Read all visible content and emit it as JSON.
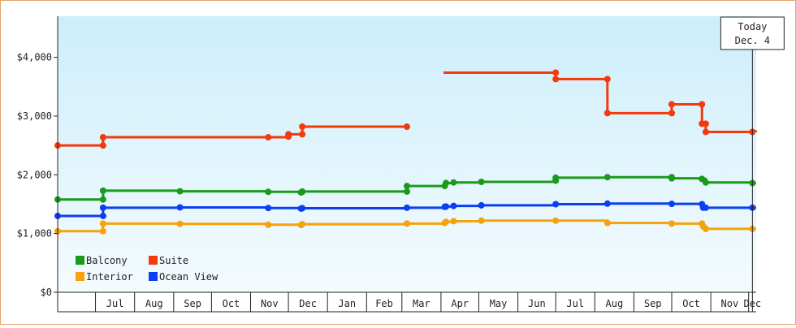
{
  "chart_data": {
    "type": "line",
    "step": true,
    "y_ticks": [
      "$0",
      "$1,000",
      "$2,000",
      "$3,000",
      "$4,000"
    ],
    "ylim": [
      0,
      4700
    ],
    "x_range": [
      "2016-06-01",
      "2017-12-07"
    ],
    "x_tick_labels": [
      {
        "label": "Jul",
        "date": "2016-07-01"
      },
      {
        "label": "Aug",
        "date": "2016-08-01"
      },
      {
        "label": "Sep",
        "date": "2016-09-01"
      },
      {
        "label": "Oct",
        "date": "2016-10-01"
      },
      {
        "label": "Nov",
        "date": "2016-11-01"
      },
      {
        "label": "Dec",
        "date": "2016-12-01"
      },
      {
        "label": "Jan",
        "date": "2017-01-01"
      },
      {
        "label": "Feb",
        "date": "2017-02-01"
      },
      {
        "label": "Mar",
        "date": "2017-03-01"
      },
      {
        "label": "Apr",
        "date": "2017-04-01"
      },
      {
        "label": "May",
        "date": "2017-05-01"
      },
      {
        "label": "Jun",
        "date": "2017-06-01"
      },
      {
        "label": "Jul",
        "date": "2017-07-01"
      },
      {
        "label": "Aug",
        "date": "2017-08-01"
      },
      {
        "label": "Sep",
        "date": "2017-09-01"
      },
      {
        "label": "Oct",
        "date": "2017-10-01"
      },
      {
        "label": "Nov",
        "date": "2017-11-01"
      },
      {
        "label": "Dec",
        "date": "2017-12-01"
      }
    ],
    "today": {
      "title": "Today",
      "label": "Dec. 4",
      "date": "2017-12-04"
    },
    "legend_position": "bottom-left",
    "grid": false,
    "series": [
      {
        "name": "Balcony",
        "color": "#1a9a1a",
        "segments": [
          [
            [
              "2016-06-01",
              1580
            ],
            [
              "2016-07-07",
              1580
            ],
            [
              "2016-07-07",
              1730
            ],
            [
              "2016-09-06",
              1720
            ],
            [
              "2016-11-15",
              1710
            ],
            [
              "2016-12-11",
              1700
            ],
            [
              "2016-12-12",
              1710
            ],
            [
              "2016-12-12",
              1715
            ],
            [
              "2017-03-05",
              1715
            ],
            [
              "2017-03-05",
              1810
            ],
            [
              "2017-04-04",
              1810
            ],
            [
              "2017-04-05",
              1860
            ],
            [
              "2017-04-11",
              1870
            ],
            [
              "2017-05-03",
              1880
            ],
            [
              "2017-07-01",
              1900
            ],
            [
              "2017-07-01",
              1950
            ],
            [
              "2017-08-11",
              1960
            ],
            [
              "2017-10-01",
              1960
            ],
            [
              "2017-10-01",
              1940
            ],
            [
              "2017-10-25",
              1930
            ],
            [
              "2017-10-28",
              1870
            ],
            [
              "2017-12-04",
              1860
            ]
          ]
        ],
        "forecast": [
          [
            "2017-12-04",
            1860
          ],
          [
            "2017-12-07",
            1860
          ]
        ]
      },
      {
        "name": "Suite",
        "color": "#f23a0c",
        "segments": [
          [
            [
              "2016-06-01",
              2500
            ],
            [
              "2016-07-07",
              2500
            ],
            [
              "2016-07-07",
              2640
            ],
            [
              "2016-11-15",
              2640
            ],
            [
              "2016-12-01",
              2650
            ],
            [
              "2016-12-01",
              2690
            ],
            [
              "2016-12-12",
              2690
            ],
            [
              "2016-12-12",
              2820
            ],
            [
              "2017-03-05",
              2820
            ]
          ],
          [
            [
              "2017-04-03",
              3740
            ],
            [
              "2017-07-01",
              3740
            ],
            [
              "2017-07-01",
              3630
            ],
            [
              "2017-08-11",
              3630
            ],
            [
              "2017-08-11",
              3050
            ],
            [
              "2017-10-01",
              3050
            ],
            [
              "2017-10-01",
              3200
            ],
            [
              "2017-10-25",
              3200
            ],
            [
              "2017-10-25",
              2870
            ],
            [
              "2017-10-28",
              2870
            ],
            [
              "2017-10-28",
              2730
            ],
            [
              "2017-12-04",
              2730
            ]
          ]
        ],
        "forecast": [
          [
            "2017-12-04",
            2730
          ],
          [
            "2017-12-07",
            2760
          ]
        ]
      },
      {
        "name": "Interior",
        "color": "#f5a20c",
        "segments": [
          [
            [
              "2016-06-01",
              1040
            ],
            [
              "2016-07-07",
              1040
            ],
            [
              "2016-07-07",
              1170
            ],
            [
              "2016-09-06",
              1165
            ],
            [
              "2016-11-15",
              1150
            ],
            [
              "2016-12-11",
              1145
            ],
            [
              "2016-12-12",
              1160
            ],
            [
              "2017-03-05",
              1170
            ],
            [
              "2017-04-04",
              1180
            ],
            [
              "2017-04-05",
              1200
            ],
            [
              "2017-04-11",
              1210
            ],
            [
              "2017-05-03",
              1220
            ],
            [
              "2017-07-01",
              1220
            ],
            [
              "2017-08-11",
              1180
            ],
            [
              "2017-10-01",
              1170
            ],
            [
              "2017-10-25",
              1170
            ],
            [
              "2017-10-26",
              1120
            ],
            [
              "2017-10-28",
              1080
            ],
            [
              "2017-12-04",
              1080
            ]
          ]
        ],
        "forecast": [
          [
            "2017-12-04",
            1080
          ],
          [
            "2017-12-07",
            1080
          ]
        ]
      },
      {
        "name": "Ocean View",
        "color": "#0b3ff0",
        "segments": [
          [
            [
              "2016-06-01",
              1300
            ],
            [
              "2016-07-07",
              1300
            ],
            [
              "2016-07-07",
              1440
            ],
            [
              "2016-09-06",
              1445
            ],
            [
              "2016-11-15",
              1435
            ],
            [
              "2016-12-11",
              1425
            ],
            [
              "2016-12-12",
              1430
            ],
            [
              "2017-03-05",
              1440
            ],
            [
              "2017-04-04",
              1455
            ],
            [
              "2017-04-05",
              1460
            ],
            [
              "2017-04-11",
              1470
            ],
            [
              "2017-05-03",
              1480
            ],
            [
              "2017-07-01",
              1500
            ],
            [
              "2017-08-11",
              1510
            ],
            [
              "2017-10-01",
              1505
            ],
            [
              "2017-10-25",
              1500
            ],
            [
              "2017-10-26",
              1440
            ],
            [
              "2017-10-28",
              1440
            ],
            [
              "2017-12-04",
              1440
            ]
          ]
        ],
        "forecast": [
          [
            "2017-12-04",
            1440
          ],
          [
            "2017-12-07",
            1440
          ]
        ]
      }
    ],
    "legend": [
      "Balcony",
      "Suite",
      "Interior",
      "Ocean View"
    ]
  }
}
